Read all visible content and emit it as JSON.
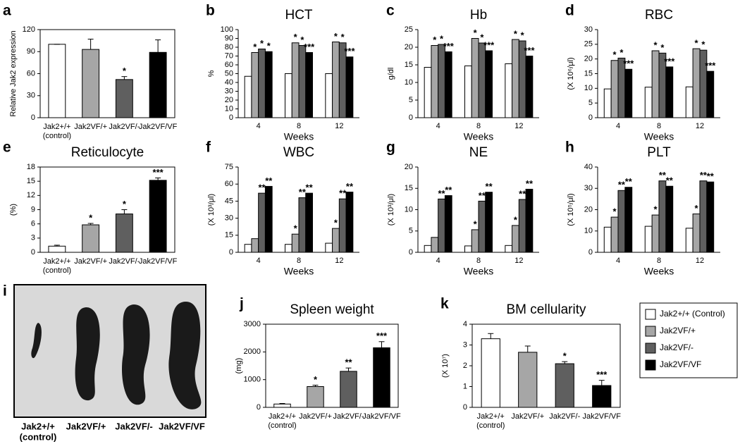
{
  "legend": {
    "entries": [
      {
        "name": "Jak2+/+ (Control)",
        "color": "#ffffff"
      },
      {
        "name": "Jak2VF/+",
        "color": "#a6a6a6"
      },
      {
        "name": "Jak2VF/-",
        "color": "#5f5f5f"
      },
      {
        "name": "Jak2VF/VF",
        "color": "#000000"
      }
    ]
  },
  "chart_data": [
    {
      "type": "bar",
      "panel": "a",
      "y_label": "Relative Jak2 expression",
      "categories": [
        "Jak2+/+",
        "Jak2VF/+",
        "Jak2VF/-",
        "Jak2VF/VF"
      ],
      "control_label": "(control)",
      "values": [
        100,
        93,
        52,
        89
      ],
      "errors": [
        0,
        14,
        4,
        17
      ],
      "stars": [
        null,
        null,
        "*",
        null
      ],
      "ylim": [
        0,
        120
      ],
      "yticks": [
        0,
        30,
        60,
        90,
        120
      ]
    },
    {
      "type": "grouped",
      "panel": "b",
      "title": "HCT",
      "y_label": "%",
      "x_label": "Weeks",
      "categories": [
        "4",
        "8",
        "12"
      ],
      "series": [
        {
          "values": [
            47,
            50,
            50
          ],
          "stars": [
            null,
            null,
            null
          ]
        },
        {
          "values": [
            74,
            85,
            86
          ],
          "stars": [
            "*",
            "*",
            "*"
          ]
        },
        {
          "values": [
            78,
            82,
            85
          ],
          "stars": [
            "*",
            "*",
            "*"
          ]
        },
        {
          "values": [
            75,
            74,
            69
          ],
          "stars": [
            "*",
            "***",
            "***"
          ]
        }
      ],
      "ylim": [
        0,
        100
      ],
      "yticks": [
        0,
        10,
        20,
        30,
        40,
        50,
        60,
        70,
        80,
        90,
        100
      ]
    },
    {
      "type": "grouped",
      "panel": "c",
      "title": "Hb",
      "y_label": "g/dl",
      "x_label": "Weeks",
      "categories": [
        "4",
        "8",
        "12"
      ],
      "series": [
        {
          "values": [
            14.3,
            14.7,
            15.3
          ],
          "stars": [
            null,
            null,
            null
          ]
        },
        {
          "values": [
            20.5,
            22.5,
            22.2
          ],
          "stars": [
            "*",
            "*",
            "*"
          ]
        },
        {
          "values": [
            20.8,
            21.2,
            21.8
          ],
          "stars": [
            "*",
            "*",
            "*"
          ]
        },
        {
          "values": [
            18.7,
            19.0,
            17.5
          ],
          "stars": [
            "***",
            "***",
            "***"
          ]
        }
      ],
      "ylim": [
        0,
        25
      ],
      "yticks": [
        0,
        5,
        10,
        15,
        20,
        25
      ]
    },
    {
      "type": "grouped",
      "panel": "d",
      "title": "RBC",
      "y_label": "(X 10⁶/μl)",
      "x_label": "Weeks",
      "categories": [
        "4",
        "8",
        "12"
      ],
      "series": [
        {
          "values": [
            9.8,
            10.4,
            10.5
          ],
          "stars": [
            null,
            null,
            null
          ]
        },
        {
          "values": [
            19.5,
            22.8,
            23.5
          ],
          "stars": [
            "*",
            "*",
            "*"
          ]
        },
        {
          "values": [
            20.3,
            22.0,
            23.0
          ],
          "stars": [
            "*",
            "*",
            "*"
          ]
        },
        {
          "values": [
            16.5,
            17.3,
            15.8
          ],
          "stars": [
            "***",
            "***",
            "***"
          ]
        }
      ],
      "ylim": [
        0,
        30
      ],
      "yticks": [
        0,
        5,
        10,
        15,
        20,
        25,
        30
      ]
    },
    {
      "type": "bar",
      "panel": "e",
      "title": "Reticulocyte",
      "y_label": "(%)",
      "categories": [
        "Jak2+/+",
        "Jak2VF/+",
        "Jak2VF/-",
        "Jak2VF/VF"
      ],
      "control_label": "(control)",
      "values": [
        1.3,
        5.8,
        8.1,
        15.2
      ],
      "errors": [
        0.2,
        0.3,
        0.9,
        0.5
      ],
      "stars": [
        null,
        "*",
        "*",
        "***"
      ],
      "ylim": [
        0,
        18
      ],
      "yticks": [
        0,
        3,
        6,
        9,
        12,
        15,
        18
      ]
    },
    {
      "type": "grouped",
      "panel": "f",
      "title": "WBC",
      "y_label": "(X 10³/μl)",
      "x_label": "Weeks",
      "categories": [
        "4",
        "8",
        "12"
      ],
      "series": [
        {
          "values": [
            7,
            7,
            8
          ],
          "stars": [
            null,
            null,
            null
          ]
        },
        {
          "values": [
            12,
            16,
            21
          ],
          "stars": [
            null,
            "*",
            "*"
          ]
        },
        {
          "values": [
            52,
            48,
            47
          ],
          "stars": [
            "**",
            "**",
            "**"
          ]
        },
        {
          "values": [
            58,
            52,
            53
          ],
          "stars": [
            "**",
            "**",
            "**"
          ]
        }
      ],
      "ylim": [
        0,
        75
      ],
      "yticks": [
        0,
        15,
        30,
        45,
        60,
        75
      ]
    },
    {
      "type": "grouped",
      "panel": "g",
      "title": "NE",
      "y_label": "(X 10³/μl)",
      "x_label": "Weeks",
      "categories": [
        "4",
        "8",
        "12"
      ],
      "series": [
        {
          "values": [
            1.6,
            1.5,
            1.6
          ],
          "stars": [
            null,
            null,
            null
          ]
        },
        {
          "values": [
            3.5,
            5.3,
            6.3
          ],
          "stars": [
            null,
            "*",
            "*"
          ]
        },
        {
          "values": [
            12.5,
            12.0,
            12.4
          ],
          "stars": [
            "**",
            "**",
            "**"
          ]
        },
        {
          "values": [
            13.3,
            14.1,
            14.8
          ],
          "stars": [
            "**",
            "**",
            "**"
          ]
        }
      ],
      "ylim": [
        0,
        20
      ],
      "yticks": [
        0,
        5,
        10,
        15,
        20
      ]
    },
    {
      "type": "grouped",
      "panel": "h",
      "title": "PLT",
      "y_label": "(X 10⁵/μl)",
      "x_label": "Weeks",
      "categories": [
        "4",
        "8",
        "12"
      ],
      "series": [
        {
          "values": [
            11.8,
            12.2,
            11.3
          ],
          "stars": [
            null,
            null,
            null
          ]
        },
        {
          "values": [
            16.5,
            17.5,
            18
          ],
          "stars": [
            "*",
            "*",
            "*"
          ]
        },
        {
          "values": [
            29,
            33.5,
            33.5
          ],
          "stars": [
            "**",
            "**",
            "**"
          ]
        },
        {
          "values": [
            30.5,
            31,
            33
          ],
          "stars": [
            "**",
            "**",
            "**"
          ]
        }
      ],
      "ylim": [
        0,
        40
      ],
      "yticks": [
        0,
        10,
        20,
        30,
        40
      ]
    },
    {
      "type": "photo",
      "panel": "i",
      "categories": [
        "Jak2+/+",
        "Jak2VF/+",
        "Jak2VF/-",
        "Jak2VF/VF"
      ],
      "control_label": "(control)"
    },
    {
      "type": "bar",
      "panel": "j",
      "title": "Spleen weight",
      "y_label": "(mg)",
      "categories": [
        "Jak2+/+",
        "Jak2VF/+",
        "Jak2VF/-",
        "Jak2VF/VF"
      ],
      "control_label": "(control)",
      "values": [
        120,
        750,
        1300,
        2150
      ],
      "errors": [
        20,
        50,
        120,
        220
      ],
      "stars": [
        null,
        "*",
        "**",
        "***"
      ],
      "ylim": [
        0,
        3000
      ],
      "yticks": [
        0,
        1000,
        2000,
        3000
      ]
    },
    {
      "type": "bar",
      "panel": "k",
      "title": "BM cellularity",
      "y_label": "(X 10⁷)",
      "categories": [
        "Jak2+/+",
        "Jak2VF/+",
        "Jak2VF/-",
        "Jak2VF/VF"
      ],
      "control_label": "(control)",
      "values": [
        3.3,
        2.65,
        2.1,
        1.05
      ],
      "errors": [
        0.25,
        0.3,
        0.1,
        0.25
      ],
      "stars": [
        null,
        null,
        "*",
        "***"
      ],
      "ylim": [
        0,
        4
      ],
      "yticks": [
        0,
        1,
        2,
        3,
        4
      ]
    }
  ]
}
